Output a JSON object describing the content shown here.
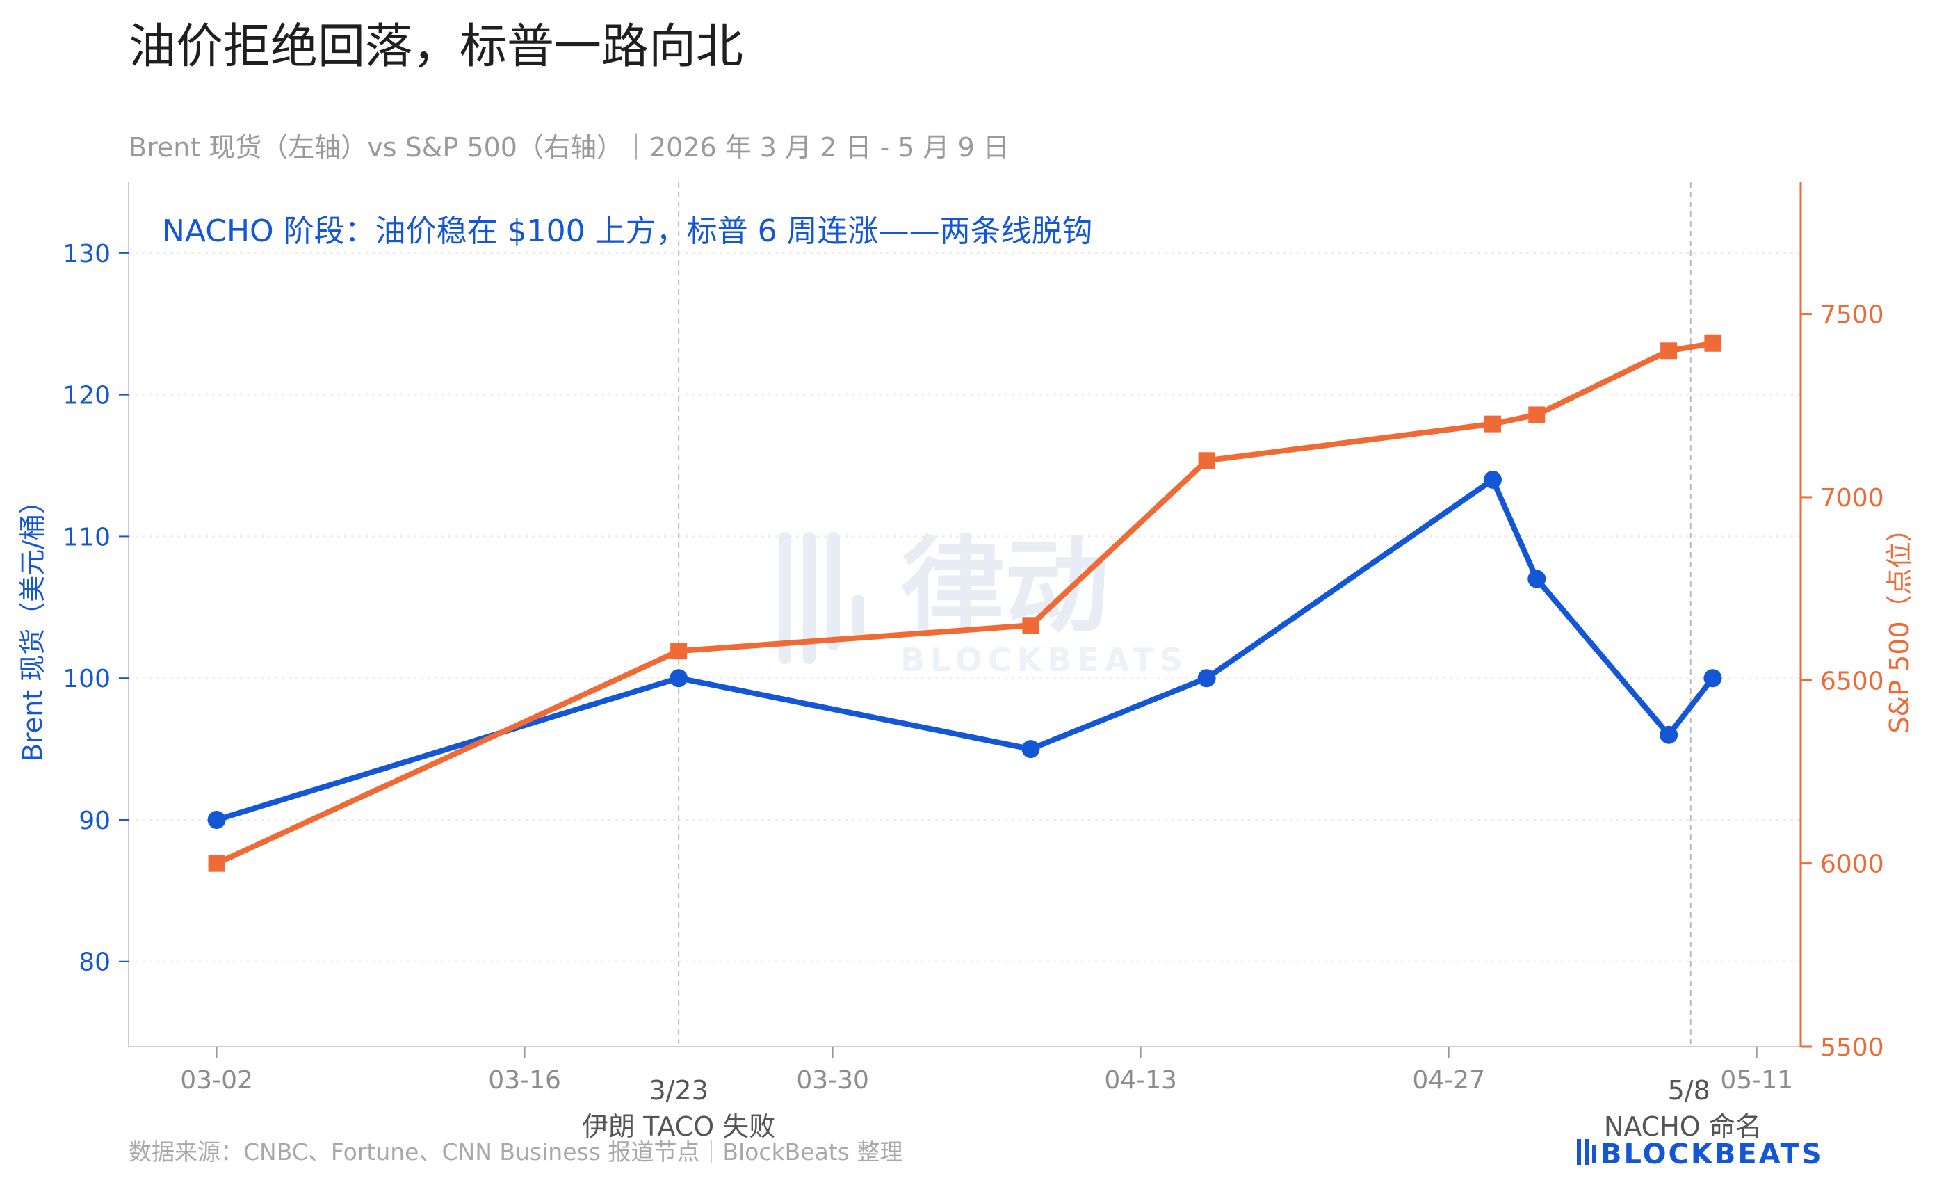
{
  "header": {
    "title": "油价拒绝回落，标普一路向北",
    "subtitle": "Brent 现货（左轴）vs S&P 500（右轴）｜2026 年 3 月 2 日 - 5 月 9 日"
  },
  "annotation": "NACHO 阶段：油价稳在 $100 上方，标普 6 周连涨——两条线脱钩",
  "footer": {
    "source": "数据来源：CNBC、Fortune、CNN Business 报道节点｜BlockBeats 整理",
    "brand": "BLOCKBEATS"
  },
  "watermark": {
    "text": "律动",
    "sub": "BLOCKBEATS"
  },
  "colors": {
    "brent": "#1457d6",
    "spx": "#f06a35",
    "grid": "#ececec",
    "axis": "#cccccc"
  },
  "chart_data": {
    "type": "line",
    "x_axis": {
      "type": "date",
      "range": [
        "2026-02-26",
        "2026-05-13"
      ],
      "ticks": [
        {
          "date": "2026-03-02",
          "label": "03-02"
        },
        {
          "date": "2026-03-16",
          "label": "03-16"
        },
        {
          "date": "2026-03-30",
          "label": "03-30"
        },
        {
          "date": "2026-04-13",
          "label": "04-13"
        },
        {
          "date": "2026-04-27",
          "label": "04-27"
        },
        {
          "date": "2026-05-11",
          "label": "05-11"
        }
      ]
    },
    "y_left": {
      "label": "Brent 现货（美元/桶）",
      "range": [
        74,
        135
      ],
      "ticks": [
        80,
        90,
        100,
        110,
        120,
        130
      ]
    },
    "y_right": {
      "label": "S&P 500（点位）",
      "range": [
        5500,
        7860
      ],
      "ticks": [
        5500,
        6000,
        6500,
        7000,
        7500
      ]
    },
    "series": [
      {
        "axis": "left",
        "marker": "circle",
        "points": [
          {
            "x": "2026-03-02",
            "y": 90
          },
          {
            "x": "2026-03-23",
            "y": 100
          },
          {
            "x": "2026-04-08",
            "y": 95
          },
          {
            "x": "2026-04-16",
            "y": 100
          },
          {
            "x": "2026-04-29",
            "y": 114
          },
          {
            "x": "2026-05-01",
            "y": 107
          },
          {
            "x": "2026-05-07",
            "y": 96
          },
          {
            "x": "2026-05-09",
            "y": 100
          }
        ]
      },
      {
        "axis": "right",
        "marker": "square",
        "points": [
          {
            "x": "2026-03-02",
            "y": 6000
          },
          {
            "x": "2026-03-23",
            "y": 6580
          },
          {
            "x": "2026-04-08",
            "y": 6650
          },
          {
            "x": "2026-04-16",
            "y": 7100
          },
          {
            "x": "2026-04-29",
            "y": 7200
          },
          {
            "x": "2026-05-01",
            "y": 7225
          },
          {
            "x": "2026-05-07",
            "y": 7400
          },
          {
            "x": "2026-05-09",
            "y": 7420
          }
        ]
      }
    ],
    "events": [
      {
        "date": "2026-03-23",
        "label": "3/23",
        "desc": "伊朗 TACO 失败"
      },
      {
        "date": "2026-05-08",
        "label": "5/8",
        "desc": "NACHO 命名"
      }
    ],
    "grid": true
  }
}
